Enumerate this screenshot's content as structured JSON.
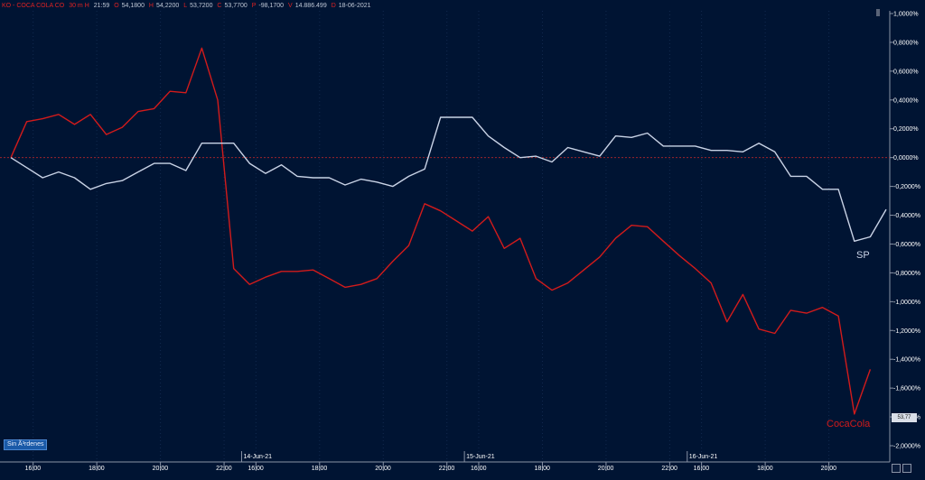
{
  "infobar": {
    "symbol": "KO - COCA COLA CO",
    "interval": "30 m H",
    "time": "21:59",
    "open_label": "O",
    "open": "54,1800",
    "high_label": "H",
    "high": "54,2200",
    "low_label": "L",
    "low": "53,7200",
    "close_label": "C",
    "close": "53,7700",
    "change_label": "P",
    "change": "-98,1700",
    "volume_label": "V",
    "volume": "14.886.499",
    "date_label": "D",
    "date": "18-06-2021"
  },
  "order_badge": "Sin Ã³rdenes",
  "price_tag": "53,77",
  "colors": {
    "background": "#001433",
    "cocacola": "#d21b1b",
    "sp": "#c9d3e6",
    "zero_line": "#b5262a",
    "axis_text": "#ffffff"
  },
  "chart_data": {
    "type": "line",
    "x_tick_labels": [
      {
        "i": 1.4,
        "label": "16:00"
      },
      {
        "i": 5.4,
        "label": "18:00"
      },
      {
        "i": 9.4,
        "label": "20:00"
      },
      {
        "i": 13.4,
        "label": "22:00"
      },
      {
        "i": 15.4,
        "label": "16:00"
      },
      {
        "i": 19.4,
        "label": "18:00"
      },
      {
        "i": 23.4,
        "label": "20:00"
      },
      {
        "i": 27.4,
        "label": "22:00"
      },
      {
        "i": 29.4,
        "label": "16:00"
      },
      {
        "i": 33.4,
        "label": "18:00"
      },
      {
        "i": 37.4,
        "label": "20:00"
      },
      {
        "i": 41.4,
        "label": "22:00"
      },
      {
        "i": 43.4,
        "label": "16:00"
      },
      {
        "i": 47.4,
        "label": "18:00"
      },
      {
        "i": 51.4,
        "label": "20:00"
      }
    ],
    "date_labels": [
      {
        "i": 14.5,
        "label": "14-Jun-21"
      },
      {
        "i": 28.5,
        "label": "15-Jun-21"
      },
      {
        "i": 42.5,
        "label": "16-Jun-21"
      }
    ],
    "y_ticks": [
      "1,0000%",
      "0,8000%",
      "0,6000%",
      "0,4000%",
      "0,2000%",
      "0,0000%",
      "-0,2000%",
      "-0,4000%",
      "-0,6000%",
      "-0,8000%",
      "-1,0000%",
      "-1,2000%",
      "-1,4000%",
      "-1,6000%",
      "-1,8000%",
      "-2,0000%"
    ],
    "y_values": [
      1.0,
      0.8,
      0.6,
      0.4,
      0.2,
      0.0,
      -0.2,
      -0.4,
      -0.6,
      -0.8,
      -1.0,
      -1.2,
      -1.4,
      -1.6,
      -1.8,
      -2.0
    ],
    "ylim": [
      -2.0,
      1.0
    ],
    "zero_line": 0.0,
    "series": [
      {
        "name": "CocaCola",
        "color": "#d21b1b",
        "values": [
          0.0,
          0.25,
          0.27,
          0.3,
          0.23,
          0.3,
          0.16,
          0.21,
          0.32,
          0.34,
          0.46,
          0.45,
          0.76,
          0.4,
          -0.77,
          -0.88,
          -0.83,
          -0.79,
          -0.79,
          -0.78,
          -0.84,
          -0.9,
          -0.88,
          -0.84,
          -0.72,
          -0.61,
          -0.32,
          -0.37,
          -0.44,
          -0.51,
          -0.41,
          -0.63,
          -0.56,
          -0.84,
          -0.92,
          -0.87,
          -0.78,
          -0.69,
          -0.56,
          -0.47,
          -0.48,
          -0.58,
          -0.68,
          -0.77,
          -0.87,
          -1.14,
          -0.95,
          -1.19,
          -1.22,
          -1.06,
          -1.08,
          -1.04,
          -1.1,
          -1.78,
          -1.47
        ]
      },
      {
        "name": "SP",
        "color": "#c9d3e6",
        "values": [
          0.0,
          -0.07,
          -0.14,
          -0.1,
          -0.14,
          -0.22,
          -0.18,
          -0.16,
          -0.1,
          -0.04,
          -0.04,
          -0.09,
          0.1,
          0.1,
          0.1,
          -0.04,
          -0.11,
          -0.05,
          -0.13,
          -0.14,
          -0.14,
          -0.19,
          -0.15,
          -0.17,
          -0.2,
          -0.13,
          -0.08,
          0.28,
          0.28,
          0.28,
          0.15,
          0.07,
          0.0,
          0.01,
          -0.03,
          0.07,
          0.04,
          0.01,
          0.15,
          0.14,
          0.17,
          0.08,
          0.08,
          0.08,
          0.05,
          0.05,
          0.04,
          0.1,
          0.04,
          -0.13,
          -0.13,
          -0.22,
          -0.22,
          -0.58,
          -0.55,
          -0.36
        ]
      }
    ]
  }
}
